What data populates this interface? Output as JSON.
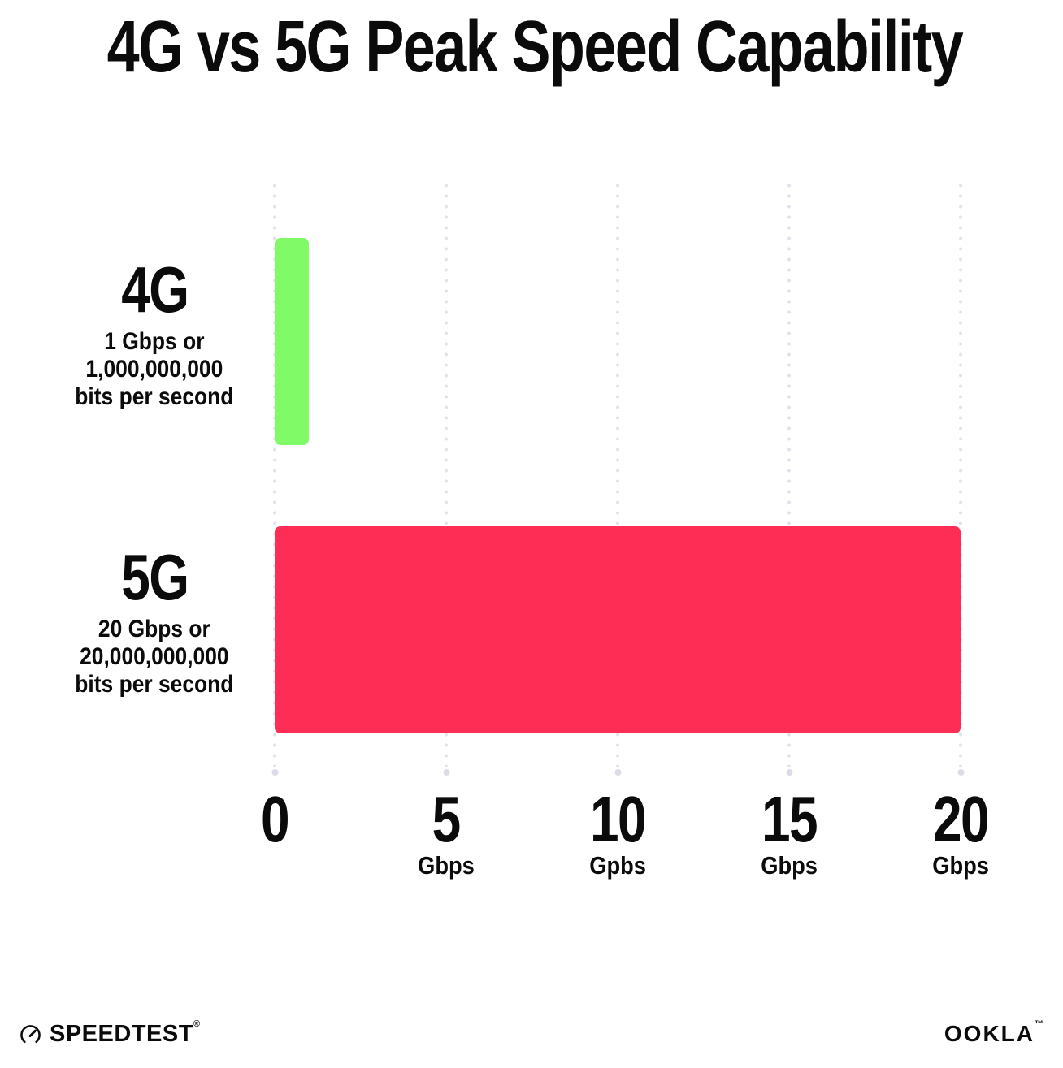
{
  "title": "4G vs 5G Peak Speed Capability",
  "chart_data": {
    "type": "bar",
    "orientation": "horizontal",
    "title": "4G vs 5G Peak Speed Capability",
    "categories": [
      "4G",
      "5G"
    ],
    "values": [
      1,
      20
    ],
    "value_unit": "Gbps",
    "xlim": [
      0,
      20
    ],
    "x_tick_values": [
      0,
      5,
      10,
      15,
      20
    ],
    "x_ticks": [
      {
        "value": "0",
        "unit": ""
      },
      {
        "value": "5",
        "unit": "Gbps"
      },
      {
        "value": "10",
        "unit": "Gpbs"
      },
      {
        "value": "15",
        "unit": "Gbps"
      },
      {
        "value": "20",
        "unit": "Gbps"
      }
    ],
    "grid": "dotted vertical gridlines at each tick, end dot at bottom",
    "legend": "none",
    "bar_colors": [
      "#80FA66",
      "#FE2D55"
    ]
  },
  "rows": [
    {
      "label": "4G",
      "desc": [
        "1 Gbps or",
        "1,000,000,000",
        "bits per second"
      ],
      "value": 1,
      "color": "#80FA66"
    },
    {
      "label": "5G",
      "desc": [
        "20 Gbps or",
        "20,000,000,000",
        "bits per second"
      ],
      "value": 20,
      "color": "#FE2D55"
    }
  ],
  "footer": {
    "speedtest_label": "SPEEDTEST",
    "speedtest_trademark": "®",
    "ookla_label": "OOKLA",
    "ookla_trademark": "™"
  },
  "colors": {
    "background": "#FFFFFF",
    "text": "#0B0B0B",
    "gridline_dot": "#E2E2EC",
    "bar_4g": "#80FA66",
    "bar_5g": "#FE2D55"
  }
}
